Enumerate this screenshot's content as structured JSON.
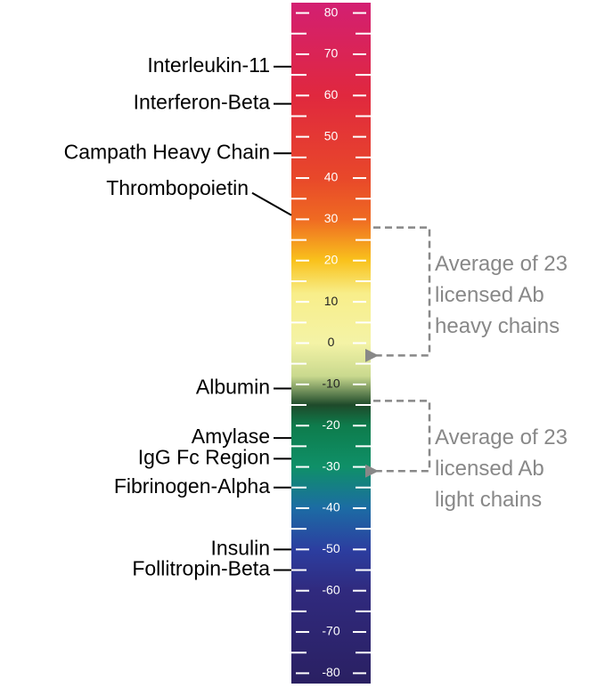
{
  "chart_data": {
    "type": "scale",
    "ylim": [
      -82.5,
      82.5
    ],
    "yticks": [
      80,
      70,
      60,
      50,
      40,
      30,
      20,
      10,
      0,
      -10,
      -20,
      -30,
      -40,
      -50,
      -60,
      -70,
      -80
    ],
    "minor_ticks": [
      75,
      65,
      55,
      45,
      35,
      25,
      15,
      5,
      -5,
      -15,
      -25,
      -35,
      -45,
      -55,
      -65,
      -75
    ],
    "gradient": [
      {
        "value": 82.5,
        "color": "#d31f72"
      },
      {
        "value": 60,
        "color": "#e0283e"
      },
      {
        "value": 40,
        "color": "#e8482a"
      },
      {
        "value": 30,
        "color": "#ef6a22"
      },
      {
        "value": 20,
        "color": "#f9c21c"
      },
      {
        "value": 12,
        "color": "#f8ee8a"
      },
      {
        "value": 0,
        "color": "#f4f3a6"
      },
      {
        "value": -8,
        "color": "#c9d98e"
      },
      {
        "value": -15,
        "color": "#1e4a2a"
      },
      {
        "value": -20,
        "color": "#0e7c4c"
      },
      {
        "value": -30,
        "color": "#0f9068"
      },
      {
        "value": -40,
        "color": "#1c6ca4"
      },
      {
        "value": -50,
        "color": "#2c3ea0"
      },
      {
        "value": -60,
        "color": "#302a7e"
      },
      {
        "value": -82.5,
        "color": "#2a2062"
      }
    ],
    "markers": [
      {
        "name": "Interleukin-11",
        "value": 67
      },
      {
        "name": "Interferon-Beta",
        "value": 58
      },
      {
        "name": "Campath Heavy Chain",
        "value": 46
      },
      {
        "name": "Thrombopoietin",
        "value": 31
      },
      {
        "name": "Albumin",
        "value": -11
      },
      {
        "name": "Amylase",
        "value": -23
      },
      {
        "name": "IgG Fc Region",
        "value": -28
      },
      {
        "name": "Fibrinogen-Alpha",
        "value": -35
      },
      {
        "name": "Insulin",
        "value": -50
      },
      {
        "name": "Follitropin-Beta",
        "value": -55
      }
    ],
    "ranges": [
      {
        "lines": [
          "Average of 23",
          "licensed Ab",
          "heavy chains"
        ],
        "from": 28,
        "to": -3
      },
      {
        "lines": [
          "Average of 23",
          "licensed Ab",
          "light chains"
        ],
        "from": -14,
        "to": -31
      }
    ]
  }
}
